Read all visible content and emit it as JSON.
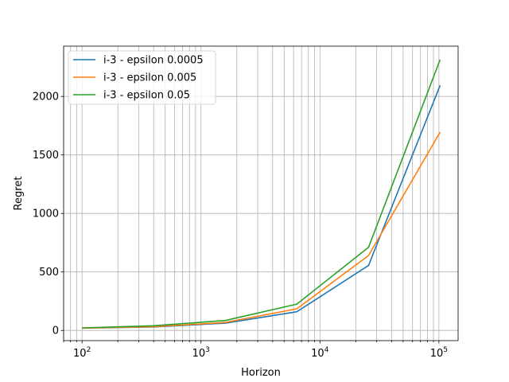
{
  "chart_data": {
    "type": "line",
    "title": "",
    "xlabel": "Horizon",
    "ylabel": "Regret",
    "xscale": "log",
    "xlim": [
      70,
      145000
    ],
    "ylim": [
      -87,
      2430
    ],
    "grid": "on (major and minor x, major y)",
    "legend_position": "upper-left",
    "x": [
      100,
      400,
      1600,
      6400,
      25600,
      102400
    ],
    "x_tick_labels": [
      "10^2",
      "10^3",
      "10^4",
      "10^5"
    ],
    "y_ticks": [
      0,
      500,
      1000,
      1500,
      2000
    ],
    "series": [
      {
        "name": "i-3 - epsilon 0.0005",
        "color": "#1f77b4",
        "values": [
          20,
          30,
          62,
          160,
          555,
          2095
        ]
      },
      {
        "name": "i-3 - epsilon 0.005",
        "color": "#ff7f0e",
        "values": [
          20,
          32,
          68,
          185,
          640,
          1695
        ]
      },
      {
        "name": "i-3 - epsilon 0.05",
        "color": "#2ca02c",
        "values": [
          22,
          40,
          85,
          225,
          710,
          2315
        ]
      }
    ]
  }
}
